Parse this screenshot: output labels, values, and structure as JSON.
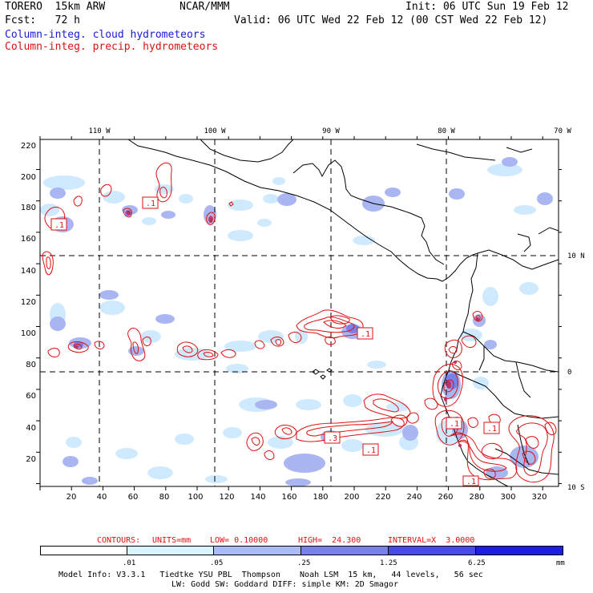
{
  "header": {
    "model": "TORERO  15km ARW",
    "org": "NCAR/MMM",
    "init": "Init: 06 UTC Sun 19 Feb 12",
    "fcst": "Fcst:   72 h",
    "valid": "Valid: 06 UTC Wed 22 Feb 12 (00 CST Wed 22 Feb 12)",
    "field1": "Column-integ. cloud hydrometeors",
    "field2": "Column-integ. precip. hydrometeors"
  },
  "map": {
    "top_lon_labels": [
      "110 W",
      "100 W",
      "90 W",
      "80 W",
      "70 W"
    ],
    "right_lat_labels": [
      "10 N",
      "0",
      "10 S"
    ],
    "y_ticks": [
      "220",
      "200",
      "180",
      "160",
      "140",
      "120",
      "100",
      "80",
      "60",
      "40",
      "20"
    ],
    "x_ticks": [
      "20",
      "40",
      "60",
      "80",
      "100",
      "120",
      "140",
      "160",
      "180",
      "200",
      "220",
      "240",
      "260",
      "280",
      "300",
      "320"
    ],
    "contour_labels": [
      ".1",
      ".1",
      ".1",
      ".1",
      ".3",
      ".1",
      ".1",
      ".1"
    ]
  },
  "contour_info": {
    "contours": "CONTOURS:",
    "units": "UNITS=mm",
    "low": "LOW= 0.10000",
    "high": "HIGH=  24.300",
    "interval": "INTERVAL=X  3.0000"
  },
  "colorbar": {
    "labels": [
      ".01",
      ".05",
      ".25",
      "1.25",
      "6.25"
    ],
    "unit": "mm",
    "colors": [
      "#ffffff",
      "#d9f4ff",
      "#aabbf5",
      "#7a80f0",
      "#4a4ae8",
      "#1e1ee0"
    ]
  },
  "footer": {
    "line1": "Model Info: V3.3.1   Tiedtke YSU PBL  Thompson    Noah LSM  15 km,   44 levels,   56 sec",
    "line2": "LW: Godd SW: Goddard DIFF: simple KM: 2D Smagor"
  },
  "colors": {
    "cloud_light": "#cfeaff",
    "cloud_mid": "#a9b6f2",
    "cloud_dark": "#7a80ea",
    "precip": "#dd1111"
  }
}
